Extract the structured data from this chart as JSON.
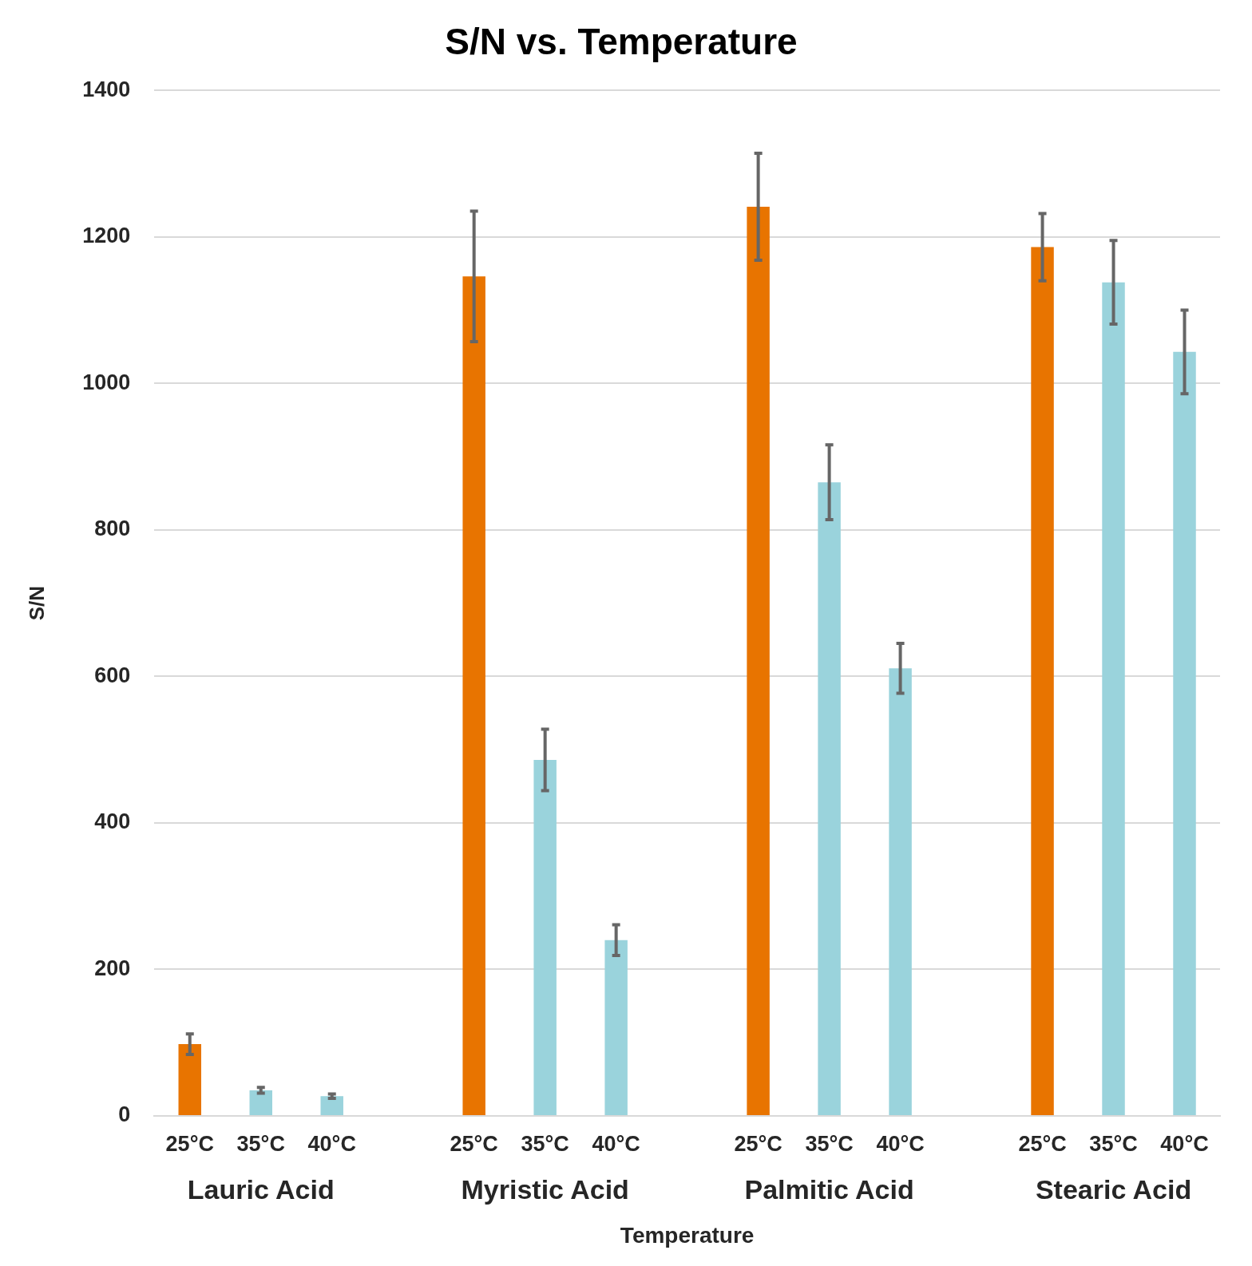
{
  "chart_data": {
    "type": "bar",
    "title": "S/N vs. Temperature",
    "xlabel": "Temperature",
    "ylabel": "S/N",
    "categories": [
      "25°C",
      "35°C",
      "40°C",
      null,
      "25°C",
      "35°C",
      "40°C",
      null,
      "25°C",
      "35°C",
      "40°C",
      null,
      "25°C",
      "35°C",
      "40°C"
    ],
    "values": [
      98,
      35,
      27,
      null,
      1146,
      486,
      240,
      null,
      1241,
      865,
      611,
      null,
      1186,
      1138,
      1043
    ],
    "errors": [
      14,
      4,
      3,
      null,
      89,
      42,
      21,
      null,
      73,
      51,
      34,
      null,
      46,
      57,
      57
    ],
    "colors": [
      "#e87400",
      "#9ad3dc",
      "#9ad3dc",
      null,
      "#e87400",
      "#9ad3dc",
      "#9ad3dc",
      null,
      "#e87400",
      "#9ad3dc",
      "#9ad3dc",
      null,
      "#e87400",
      "#9ad3dc",
      "#9ad3dc"
    ],
    "annotations": [
      "Lauric Acid",
      "Myristic Acid",
      "Palmitic Acid",
      "Stearic Acid"
    ],
    "ylim": [
      0,
      1400
    ],
    "yticks": [
      0,
      200,
      400,
      600,
      800,
      1000,
      1200,
      1400
    ],
    "grid": "y",
    "legend": false
  }
}
